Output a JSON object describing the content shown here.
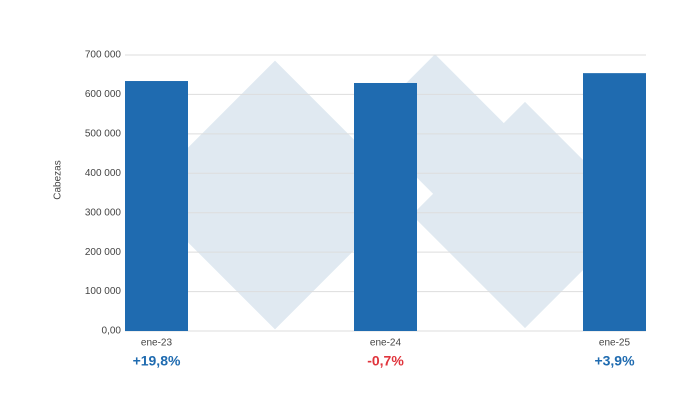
{
  "chart_data": {
    "type": "bar",
    "y_label": "Cabezas",
    "categories": [
      "ene-23",
      "ene-24",
      "ene-25"
    ],
    "values": [
      634000,
      629000,
      654000
    ],
    "color": "#1f6bb0",
    "ylim": [
      0,
      700000
    ],
    "yticks": [
      {
        "value": 0,
        "label": "0,00"
      },
      {
        "value": 100000,
        "label": "100 000"
      },
      {
        "value": 200000,
        "label": "200 000"
      },
      {
        "value": 300000,
        "label": "300 000"
      },
      {
        "value": 400000,
        "label": "400 000"
      },
      {
        "value": 500000,
        "label": "500 000"
      },
      {
        "value": 600000,
        "label": "600 000"
      },
      {
        "value": 700000,
        "label": "700 000"
      }
    ],
    "grid": true,
    "annotations": [
      {
        "text": "+19,8%",
        "color": "#1f6bb0"
      },
      {
        "text": "-0,7%",
        "color": "#e0343c"
      },
      {
        "text": "+3,9%",
        "color": "#1f6bb0"
      }
    ]
  }
}
